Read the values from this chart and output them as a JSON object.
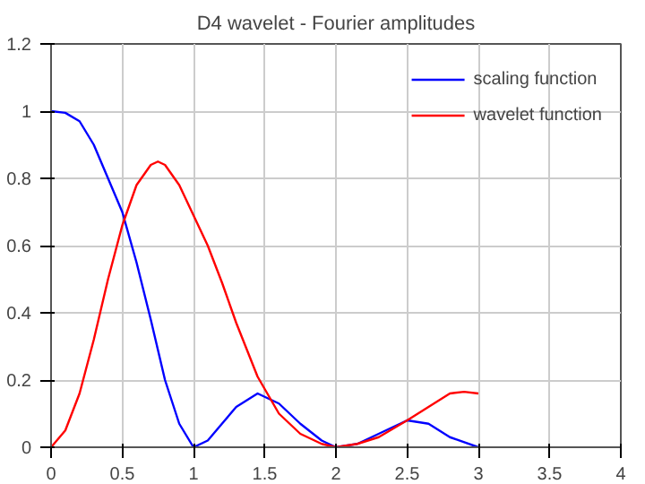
{
  "chart_data": {
    "type": "line",
    "title": "D4 wavelet - Fourier amplitudes",
    "xlim": [
      0,
      4
    ],
    "ylim": [
      0,
      1.2
    ],
    "xticks": [
      0,
      0.5,
      1,
      1.5,
      2,
      2.5,
      3,
      3.5,
      4
    ],
    "yticks": [
      0,
      0.2,
      0.4,
      0.6,
      0.8,
      1,
      1.2
    ],
    "grid": true,
    "legend": "top right",
    "marker": "none",
    "line_style": "solid",
    "series": [
      {
        "name": "scaling function",
        "color": "#0000ff",
        "x": [
          0,
          0.1,
          0.2,
          0.3,
          0.4,
          0.5,
          0.6,
          0.7,
          0.8,
          0.9,
          1,
          1.1,
          1.2,
          1.3,
          1.45,
          1.6,
          1.75,
          1.9,
          2,
          2.15,
          2.3,
          2.5,
          2.65,
          2.8,
          3
        ],
        "values": [
          1,
          0.995,
          0.97,
          0.9,
          0.8,
          0.7,
          0.55,
          0.38,
          0.2,
          0.07,
          0,
          0.02,
          0.07,
          0.12,
          0.16,
          0.13,
          0.07,
          0.02,
          0,
          0.01,
          0.04,
          0.08,
          0.07,
          0.03,
          0
        ]
      },
      {
        "name": "wavelet function",
        "color": "#ff0000",
        "x": [
          0,
          0.1,
          0.2,
          0.3,
          0.4,
          0.5,
          0.6,
          0.7,
          0.75,
          0.8,
          0.9,
          1,
          1.1,
          1.2,
          1.3,
          1.45,
          1.6,
          1.75,
          1.9,
          2,
          2.15,
          2.3,
          2.5,
          2.65,
          2.8,
          2.9,
          3
        ],
        "values": [
          0,
          0.05,
          0.16,
          0.32,
          0.5,
          0.66,
          0.78,
          0.84,
          0.85,
          0.84,
          0.78,
          0.69,
          0.6,
          0.49,
          0.37,
          0.21,
          0.1,
          0.04,
          0.01,
          0,
          0.01,
          0.03,
          0.08,
          0.12,
          0.16,
          0.165,
          0.16
        ]
      }
    ]
  }
}
